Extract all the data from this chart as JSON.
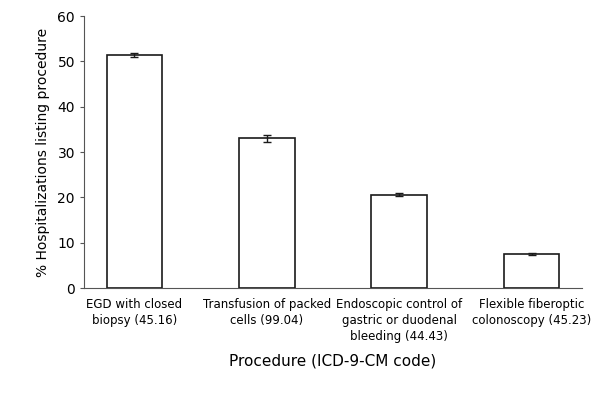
{
  "categories": [
    "EGD with closed\nbiopsy (45.16)",
    "Transfusion of packed\ncells (99.04)",
    "Endoscopic control of\ngastric or duodenal\nbleeding (44.43)",
    "Flexible fiberoptic\ncolonoscopy (45.23)"
  ],
  "values": [
    51.4,
    33.0,
    20.6,
    7.5
  ],
  "errors": [
    0.5,
    0.7,
    0.3,
    0.2
  ],
  "bar_color": "#ffffff",
  "bar_edgecolor": "#1a1a1a",
  "bar_linewidth": 1.2,
  "bar_width": 0.42,
  "ylabel": "% Hospitalizations listing procedure",
  "xlabel": "Procedure (ICD-9-CM code)",
  "ylim": [
    0,
    60
  ],
  "yticks": [
    0,
    10,
    20,
    30,
    40,
    50,
    60
  ],
  "xlabel_fontsize": 11,
  "ylabel_fontsize": 10,
  "tick_fontsize": 10,
  "xtick_fontsize": 8.5,
  "error_capsize": 3,
  "error_color": "#1a1a1a",
  "error_linewidth": 1.0,
  "background_color": "#ffffff",
  "figsize": [
    6.0,
    4.0
  ],
  "dpi": 100
}
